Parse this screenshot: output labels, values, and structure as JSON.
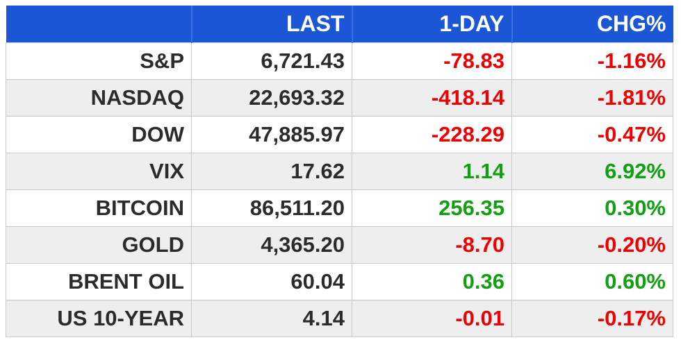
{
  "table": {
    "headers": [
      "",
      "LAST",
      "1-DAY",
      "CHG%"
    ],
    "colors": {
      "header_bg": "#1a56d6",
      "negative": "#ee0000",
      "positive": "#11a011",
      "text": "#2b2b2b"
    },
    "rows": [
      {
        "name": "S&P",
        "last": "6,721.43",
        "day": "-78.83",
        "chg": "-1.16%"
      },
      {
        "name": "NASDAQ",
        "last": "22,693.32",
        "day": "-418.14",
        "chg": "-1.81%"
      },
      {
        "name": "DOW",
        "last": "47,885.97",
        "day": "-228.29",
        "chg": "-0.47%"
      },
      {
        "name": "VIX",
        "last": "17.62",
        "day": "1.14",
        "chg": "6.92%"
      },
      {
        "name": "BITCOIN",
        "last": "86,511.20",
        "day": "256.35",
        "chg": "0.30%"
      },
      {
        "name": "GOLD",
        "last": "4,365.20",
        "day": "-8.70",
        "chg": "-0.20%"
      },
      {
        "name": "BRENT OIL",
        "last": "60.04",
        "day": "0.36",
        "chg": "0.60%"
      },
      {
        "name": "US 10-YEAR",
        "last": "4.14",
        "day": "-0.01",
        "chg": "-0.17%"
      }
    ]
  }
}
